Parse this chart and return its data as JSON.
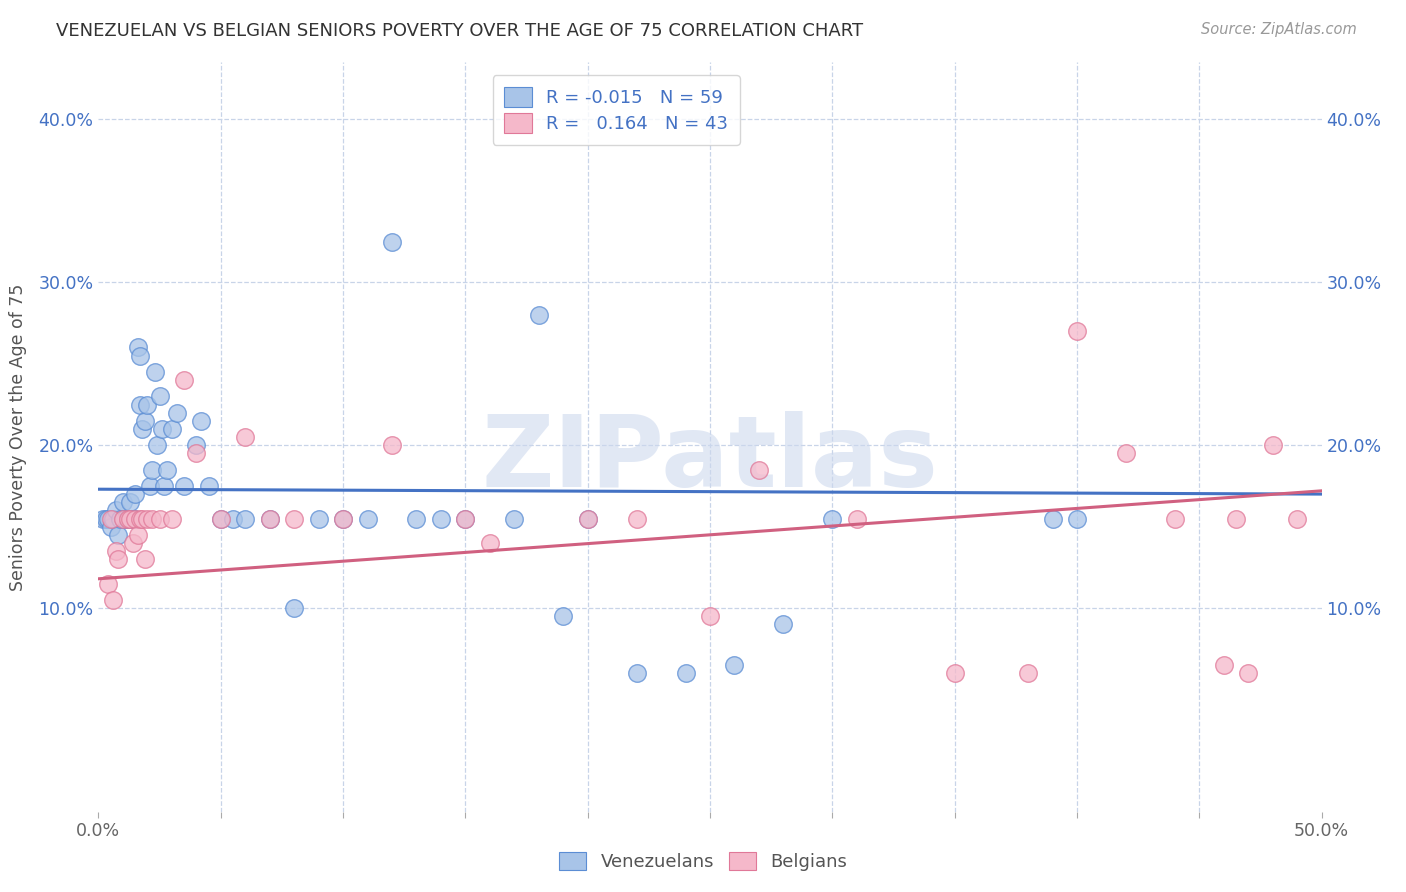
{
  "title": "VENEZUELAN VS BELGIAN SENIORS POVERTY OVER THE AGE OF 75 CORRELATION CHART",
  "source": "Source: ZipAtlas.com",
  "ylabel": "Seniors Poverty Over the Age of 75",
  "xlim": [
    0.0,
    0.5
  ],
  "ylim": [
    -0.025,
    0.435
  ],
  "venezuelan_color": "#a8c4e8",
  "belgian_color": "#f5b8ca",
  "venezuelan_edge_color": "#5b8dd4",
  "belgian_edge_color": "#e07898",
  "venezuelan_line_color": "#4472c4",
  "belgian_line_color": "#d06080",
  "venezuelan_R": "-0.015",
  "venezuelan_N": "59",
  "belgian_R": "0.164",
  "belgian_N": "43",
  "legend_text_color": "#4472c4",
  "background_color": "#ffffff",
  "grid_color": "#c8d4e8",
  "watermark": "ZIPatlas",
  "ven_line_y0": 0.173,
  "ven_line_y1": 0.17,
  "bel_line_y0": 0.118,
  "bel_line_y1": 0.172,
  "venezuelan_x": [
    0.002,
    0.003,
    0.004,
    0.005,
    0.006,
    0.007,
    0.008,
    0.009,
    0.01,
    0.01,
    0.011,
    0.012,
    0.013,
    0.014,
    0.015,
    0.015,
    0.016,
    0.017,
    0.017,
    0.018,
    0.019,
    0.02,
    0.021,
    0.022,
    0.023,
    0.024,
    0.025,
    0.026,
    0.027,
    0.028,
    0.03,
    0.032,
    0.035,
    0.04,
    0.042,
    0.045,
    0.05,
    0.055,
    0.06,
    0.07,
    0.08,
    0.09,
    0.1,
    0.11,
    0.12,
    0.13,
    0.14,
    0.15,
    0.17,
    0.18,
    0.19,
    0.2,
    0.22,
    0.24,
    0.26,
    0.28,
    0.3,
    0.39,
    0.4
  ],
  "venezuelan_y": [
    0.155,
    0.155,
    0.155,
    0.15,
    0.155,
    0.16,
    0.145,
    0.155,
    0.165,
    0.155,
    0.155,
    0.155,
    0.165,
    0.155,
    0.155,
    0.17,
    0.26,
    0.255,
    0.225,
    0.21,
    0.215,
    0.225,
    0.175,
    0.185,
    0.245,
    0.2,
    0.23,
    0.21,
    0.175,
    0.185,
    0.21,
    0.22,
    0.175,
    0.2,
    0.215,
    0.175,
    0.155,
    0.155,
    0.155,
    0.155,
    0.1,
    0.155,
    0.155,
    0.155,
    0.325,
    0.155,
    0.155,
    0.155,
    0.155,
    0.28,
    0.095,
    0.155,
    0.06,
    0.06,
    0.065,
    0.09,
    0.155,
    0.155,
    0.155
  ],
  "belgian_x": [
    0.004,
    0.005,
    0.006,
    0.007,
    0.008,
    0.01,
    0.012,
    0.013,
    0.014,
    0.015,
    0.016,
    0.017,
    0.018,
    0.019,
    0.02,
    0.022,
    0.025,
    0.03,
    0.035,
    0.04,
    0.05,
    0.06,
    0.07,
    0.08,
    0.1,
    0.12,
    0.15,
    0.16,
    0.2,
    0.22,
    0.25,
    0.27,
    0.31,
    0.35,
    0.38,
    0.4,
    0.42,
    0.44,
    0.46,
    0.465,
    0.47,
    0.48,
    0.49
  ],
  "belgian_y": [
    0.115,
    0.155,
    0.105,
    0.135,
    0.13,
    0.155,
    0.155,
    0.155,
    0.14,
    0.155,
    0.145,
    0.155,
    0.155,
    0.13,
    0.155,
    0.155,
    0.155,
    0.155,
    0.24,
    0.195,
    0.155,
    0.205,
    0.155,
    0.155,
    0.155,
    0.2,
    0.155,
    0.14,
    0.155,
    0.155,
    0.095,
    0.185,
    0.155,
    0.06,
    0.06,
    0.27,
    0.195,
    0.155,
    0.065,
    0.155,
    0.06,
    0.2,
    0.155
  ]
}
